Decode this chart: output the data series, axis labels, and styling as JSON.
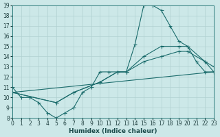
{
  "xlabel": "Humidex (Indice chaleur)",
  "bg_color": "#cce8e8",
  "grid_color": "#b0d0d0",
  "line_color": "#1a6b6b",
  "xlim": [
    0,
    23
  ],
  "ylim": [
    8,
    19
  ],
  "xticks": [
    0,
    1,
    2,
    3,
    4,
    5,
    6,
    7,
    8,
    9,
    10,
    11,
    12,
    13,
    14,
    15,
    16,
    17,
    18,
    19,
    20,
    21,
    22,
    23
  ],
  "yticks": [
    8,
    9,
    10,
    11,
    12,
    13,
    14,
    15,
    16,
    17,
    18,
    19
  ],
  "line1_x": [
    0,
    1,
    2,
    3,
    4,
    5,
    6,
    7,
    8,
    9,
    10,
    11,
    12,
    13,
    14,
    15,
    16,
    17,
    18,
    19,
    20,
    21,
    22,
    23
  ],
  "line1_y": [
    11,
    10,
    10,
    9.5,
    8.5,
    8,
    8.5,
    9,
    10.5,
    11,
    12.5,
    12.5,
    12.5,
    12.5,
    15.2,
    19,
    19,
    18.5,
    17,
    15.5,
    15,
    13.5,
    12.5,
    12.5
  ],
  "line2_x": [
    0,
    5,
    7,
    10,
    12,
    13,
    15,
    17,
    19,
    20,
    22,
    23
  ],
  "line2_y": [
    10.5,
    9.5,
    10.5,
    11.5,
    12.5,
    12.5,
    14.0,
    15.0,
    15.0,
    15.0,
    13.5,
    13.0
  ],
  "line3_x": [
    0,
    5,
    7,
    10,
    12,
    13,
    15,
    17,
    19,
    20,
    22,
    23
  ],
  "line3_y": [
    10.5,
    9.5,
    10.5,
    11.5,
    12.5,
    12.5,
    13.5,
    14.0,
    14.5,
    14.5,
    13.5,
    12.5
  ],
  "line4_x": [
    0,
    23
  ],
  "line4_y": [
    10.5,
    12.5
  ],
  "axis_fontsize": 6.5,
  "tick_fontsize": 5.5
}
